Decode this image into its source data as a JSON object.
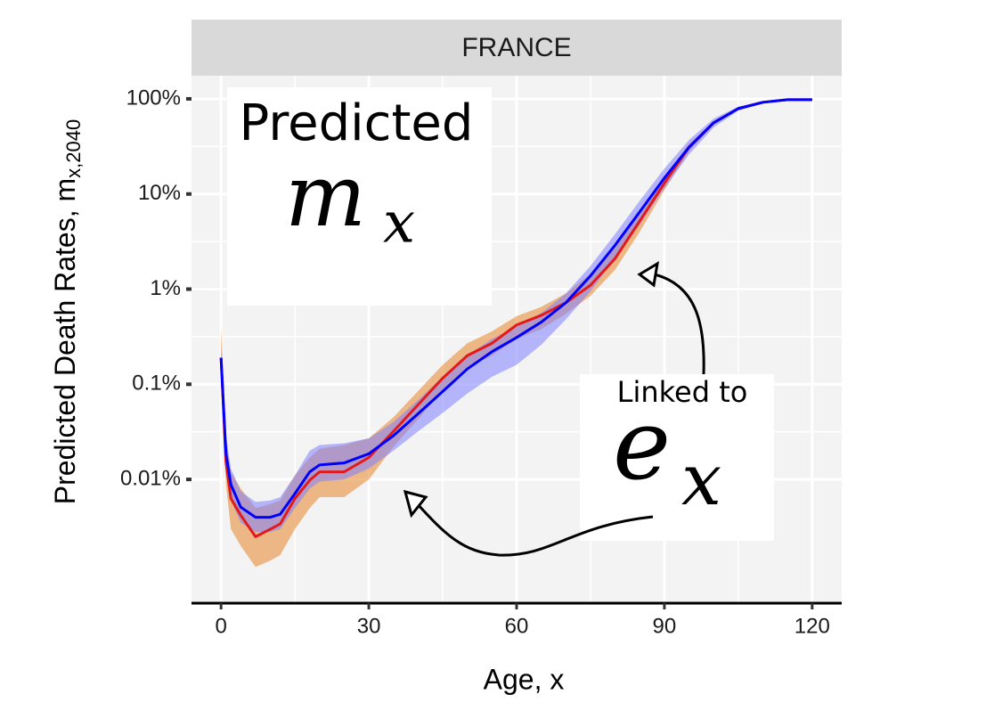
{
  "chart_data": {
    "type": "line",
    "facet": "FRANCE",
    "xlabel": "Age, x",
    "ylabel": "Predicted Death Rates, m",
    "ylabel_sub": "x,2040",
    "x": [
      0,
      1,
      2,
      4,
      7,
      10,
      12,
      15,
      18,
      20,
      25,
      30,
      35,
      40,
      45,
      50,
      55,
      60,
      65,
      70,
      75,
      80,
      85,
      90,
      95,
      100,
      105,
      110,
      115,
      120
    ],
    "xlim": [
      -6,
      126
    ],
    "xticks": [
      0,
      30,
      60,
      90,
      120
    ],
    "ylim": [
      0.0005,
      175
    ],
    "yticks": [
      {
        "value": 0.01,
        "label": "0.01%"
      },
      {
        "value": 0.1,
        "label": "0.1%"
      },
      {
        "value": 1,
        "label": "1%"
      },
      {
        "value": 10,
        "label": "10%"
      },
      {
        "value": 100,
        "label": "100%"
      }
    ],
    "log_y": true,
    "grid": true,
    "series": [
      {
        "color": "#e31a1c",
        "band_color": "#e6832a",
        "values": [
          0.19,
          0.015,
          0.0063,
          0.0042,
          0.0025,
          0.003,
          0.0034,
          0.0063,
          0.0098,
          0.012,
          0.012,
          0.017,
          0.032,
          0.061,
          0.116,
          0.2,
          0.27,
          0.42,
          0.53,
          0.72,
          1.1,
          2.1,
          5.2,
          13,
          31,
          56,
          79,
          92,
          98,
          98
        ],
        "lower": [
          0.1,
          0.009,
          0.003,
          0.002,
          0.0012,
          0.0014,
          0.0016,
          0.003,
          0.005,
          0.0065,
          0.0065,
          0.01,
          0.022,
          0.043,
          0.085,
          0.15,
          0.2,
          0.3,
          0.38,
          0.55,
          0.85,
          1.6,
          4.0,
          11,
          28,
          54,
          77,
          91,
          97,
          97
        ],
        "upper": [
          0.4,
          0.03,
          0.012,
          0.008,
          0.005,
          0.0055,
          0.006,
          0.011,
          0.017,
          0.021,
          0.023,
          0.027,
          0.045,
          0.085,
          0.16,
          0.27,
          0.36,
          0.52,
          0.65,
          0.9,
          1.45,
          2.7,
          6.6,
          15,
          34,
          58,
          81,
          93,
          99,
          99
        ]
      },
      {
        "color": "#0000ff",
        "band_color": "#7f7fff",
        "values": [
          0.19,
          0.0186,
          0.0088,
          0.0051,
          0.004,
          0.004,
          0.0043,
          0.0071,
          0.012,
          0.0142,
          0.0149,
          0.0186,
          0.0288,
          0.049,
          0.084,
          0.145,
          0.22,
          0.31,
          0.45,
          0.72,
          1.38,
          2.9,
          6.5,
          14.7,
          31,
          56,
          79,
          92,
          98,
          98
        ],
        "lower": [
          0.15,
          0.012,
          0.006,
          0.0035,
          0.0028,
          0.0028,
          0.003,
          0.005,
          0.008,
          0.0095,
          0.01,
          0.013,
          0.02,
          0.032,
          0.05,
          0.08,
          0.12,
          0.16,
          0.26,
          0.48,
          0.95,
          2.1,
          4.8,
          11.5,
          26,
          50,
          75,
          90,
          97,
          97
        ],
        "upper": [
          0.25,
          0.028,
          0.013,
          0.0075,
          0.0058,
          0.006,
          0.0065,
          0.011,
          0.02,
          0.023,
          0.024,
          0.027,
          0.04,
          0.068,
          0.12,
          0.2,
          0.3,
          0.4,
          0.56,
          0.9,
          1.75,
          3.8,
          8.5,
          18.5,
          37,
          62,
          83,
          94,
          99,
          99
        ]
      }
    ],
    "annotations": [
      {
        "text": "Predicted",
        "base": "m",
        "sub": "x"
      },
      {
        "text": "Linked to",
        "base": "e",
        "sub": "x"
      }
    ]
  }
}
